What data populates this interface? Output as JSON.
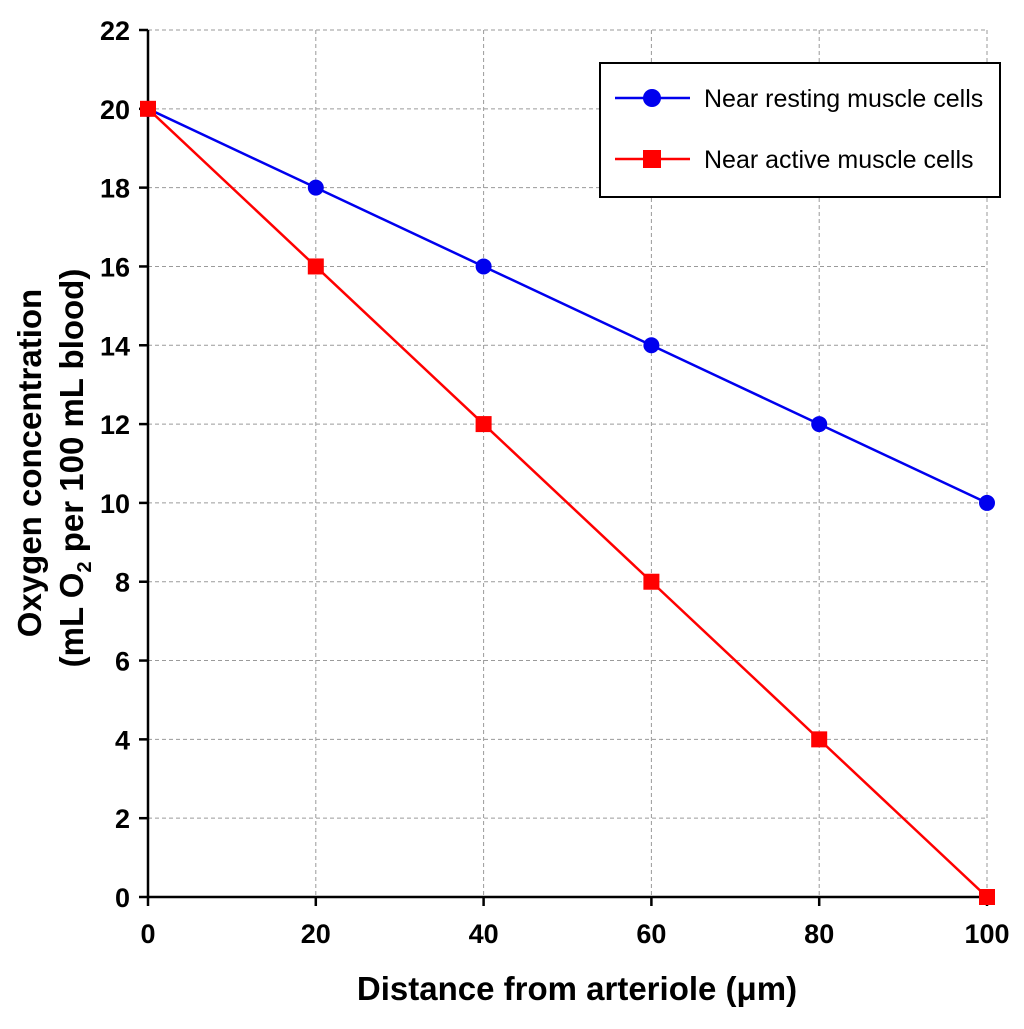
{
  "chart_data": {
    "type": "line",
    "title": "",
    "xlabel": "Distance from arteriole (μm)",
    "ylabel_line1": "Oxygen concentration",
    "ylabel_line2_before": "(mL O",
    "ylabel_line2_sub": "2",
    "ylabel_line2_after": " per 100 mL blood)",
    "x": [
      0,
      20,
      40,
      60,
      80,
      100
    ],
    "xlim": [
      0,
      100
    ],
    "ylim": [
      0,
      22
    ],
    "x_ticks": [
      "0",
      "20",
      "40",
      "60",
      "80",
      "100"
    ],
    "y_ticks": [
      "0",
      "2",
      "4",
      "6",
      "8",
      "10",
      "12",
      "14",
      "16",
      "18",
      "20",
      "22"
    ],
    "grid": true,
    "legend_position": "top-right",
    "series": [
      {
        "name": "Near resting muscle cells",
        "color": "#0000ee",
        "marker": "circle",
        "values": [
          20,
          18,
          16,
          14,
          12,
          10
        ]
      },
      {
        "name": "Near active muscle cells",
        "color": "#ff0000",
        "marker": "square",
        "values": [
          20,
          16,
          12,
          8,
          4,
          0
        ]
      }
    ]
  }
}
